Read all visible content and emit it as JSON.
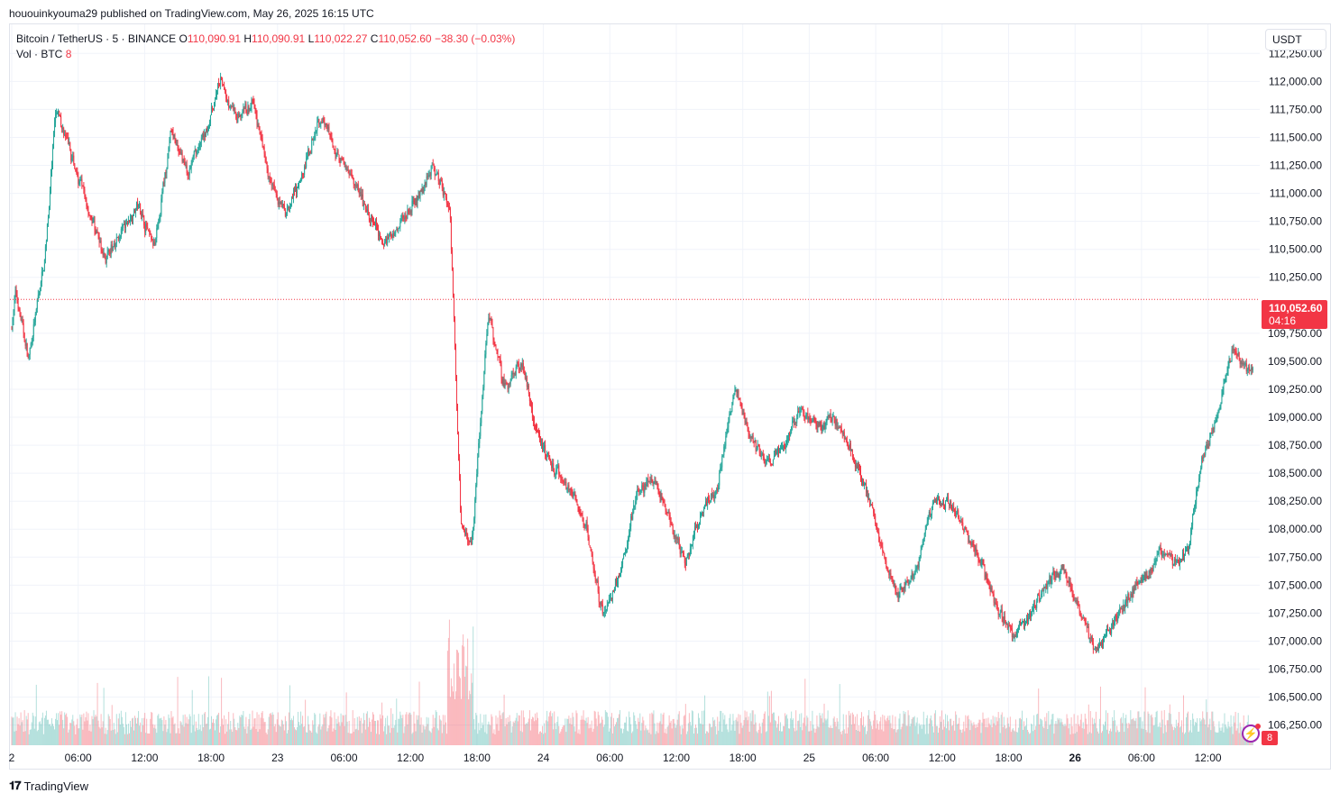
{
  "header": {
    "publish_line": "hououinkyouma29 published on TradingView.com, May 26, 2025 16:15 UTC"
  },
  "legend": {
    "symbol": "Bitcoin / TetherUS · 5 · BINANCE",
    "o_label": "O",
    "o_value": "110,090.91",
    "h_label": "H",
    "h_value": "110,090.91",
    "l_label": "L",
    "l_value": "110,022.27",
    "c_label": "C",
    "c_value": "110,052.60",
    "change": "−38.30 (−0.03%)",
    "vol_label": "Vol · BTC",
    "vol_value": "8"
  },
  "currency": "USDT",
  "last_price": {
    "value": "110,052.60",
    "countdown": "04:16"
  },
  "volume_badge": "8",
  "brand": {
    "name": "TradingView",
    "logo_icon": "tradingview-logo-icon"
  },
  "colors": {
    "up": "#26a69a",
    "down": "#f23645",
    "grid": "#f0f3fa",
    "price_line": "#f23645"
  },
  "chart_data": {
    "type": "candlestick",
    "price_axis": {
      "ticks": [
        112250,
        112000,
        111750,
        111500,
        111250,
        111000,
        110750,
        110500,
        110250,
        109750,
        109500,
        109250,
        109000,
        108750,
        108500,
        108250,
        108000,
        107750,
        107500,
        107250,
        107000,
        106750,
        106500,
        106250
      ],
      "tick_labels": [
        "112,250.00",
        "112,000.00",
        "111,750.00",
        "111,500.00",
        "111,250.00",
        "111,000.00",
        "110,750.00",
        "110,500.00",
        "110,250.00",
        "109,750.00",
        "109,500.00",
        "109,250.00",
        "109,000.00",
        "108,750.00",
        "108,500.00",
        "108,250.00",
        "108,000.00",
        "107,750.00",
        "107,500.00",
        "107,250.00",
        "107,000.00",
        "106,750.00",
        "106,500.00",
        "106,250.00"
      ],
      "range": [
        106070,
        112510
      ]
    },
    "time_axis": {
      "labels": [
        "2",
        "06:00",
        "12:00",
        "18:00",
        "23",
        "06:00",
        "12:00",
        "18:00",
        "24",
        "06:00",
        "12:00",
        "18:00",
        "25",
        "06:00",
        "12:00",
        "18:00",
        "26",
        "06:00",
        "12:00"
      ],
      "bold": [
        false,
        false,
        false,
        false,
        false,
        false,
        false,
        false,
        false,
        false,
        false,
        false,
        false,
        false,
        false,
        false,
        true,
        false,
        false
      ]
    },
    "last_price": 110052.6,
    "grid": true,
    "path_points": [
      [
        0,
        109800
      ],
      [
        0.3,
        110150
      ],
      [
        1.5,
        109500
      ],
      [
        3,
        110450
      ],
      [
        4,
        111750
      ],
      [
        5.5,
        111300
      ],
      [
        7,
        110850
      ],
      [
        8.5,
        110400
      ],
      [
        10,
        110650
      ],
      [
        11.5,
        110900
      ],
      [
        13,
        110500
      ],
      [
        14.5,
        111550
      ],
      [
        16,
        111200
      ],
      [
        17.5,
        111500
      ],
      [
        19,
        112000
      ],
      [
        20.5,
        111650
      ],
      [
        22,
        111800
      ],
      [
        23.5,
        111100
      ],
      [
        25,
        110800
      ],
      [
        26.5,
        111150
      ],
      [
        28,
        111700
      ],
      [
        29.5,
        111400
      ],
      [
        31,
        111150
      ],
      [
        32.5,
        110800
      ],
      [
        34,
        110550
      ],
      [
        35.5,
        110750
      ],
      [
        37,
        110950
      ],
      [
        38.5,
        111250
      ],
      [
        40,
        110850
      ],
      [
        41,
        108000
      ],
      [
        42,
        107900
      ],
      [
        43.5,
        109950
      ],
      [
        45,
        109250
      ],
      [
        46.5,
        109500
      ],
      [
        48,
        108850
      ],
      [
        49.5,
        108550
      ],
      [
        51,
        108350
      ],
      [
        52.5,
        108000
      ],
      [
        54,
        107200
      ],
      [
        55.5,
        107600
      ],
      [
        57,
        108300
      ],
      [
        58.5,
        108450
      ],
      [
        60,
        108100
      ],
      [
        61.5,
        107700
      ],
      [
        63,
        108150
      ],
      [
        64.5,
        108400
      ],
      [
        66,
        109300
      ],
      [
        67.5,
        108800
      ],
      [
        69,
        108600
      ],
      [
        70.5,
        108750
      ],
      [
        72,
        109050
      ],
      [
        73.5,
        108900
      ],
      [
        75,
        109000
      ],
      [
        76.5,
        108750
      ],
      [
        78,
        108350
      ],
      [
        79.5,
        107800
      ],
      [
        81,
        107400
      ],
      [
        82.5,
        107600
      ],
      [
        84,
        108200
      ],
      [
        85.5,
        108250
      ],
      [
        87,
        108000
      ],
      [
        88.5,
        107700
      ],
      [
        90,
        107300
      ],
      [
        91.5,
        107050
      ],
      [
        93,
        107250
      ],
      [
        94.5,
        107500
      ],
      [
        96,
        107650
      ],
      [
        97.5,
        107300
      ],
      [
        99,
        106900
      ],
      [
        100.5,
        107150
      ],
      [
        102,
        107400
      ],
      [
        103.5,
        107550
      ],
      [
        105,
        107800
      ],
      [
        106.5,
        107700
      ],
      [
        107.5,
        107800
      ],
      [
        108.5,
        108550
      ],
      [
        110,
        109000
      ],
      [
        111.5,
        109600
      ],
      [
        113,
        109400
      ],
      [
        114.5,
        109550
      ],
      [
        116,
        109600
      ],
      [
        117.5,
        109900
      ],
      [
        119,
        109750
      ],
      [
        120.5,
        109700
      ],
      [
        122,
        109800
      ],
      [
        123,
        109550
      ],
      [
        124,
        110100
      ]
    ],
    "volume_scale": "relative, tallest bar ≈ 1.0"
  }
}
